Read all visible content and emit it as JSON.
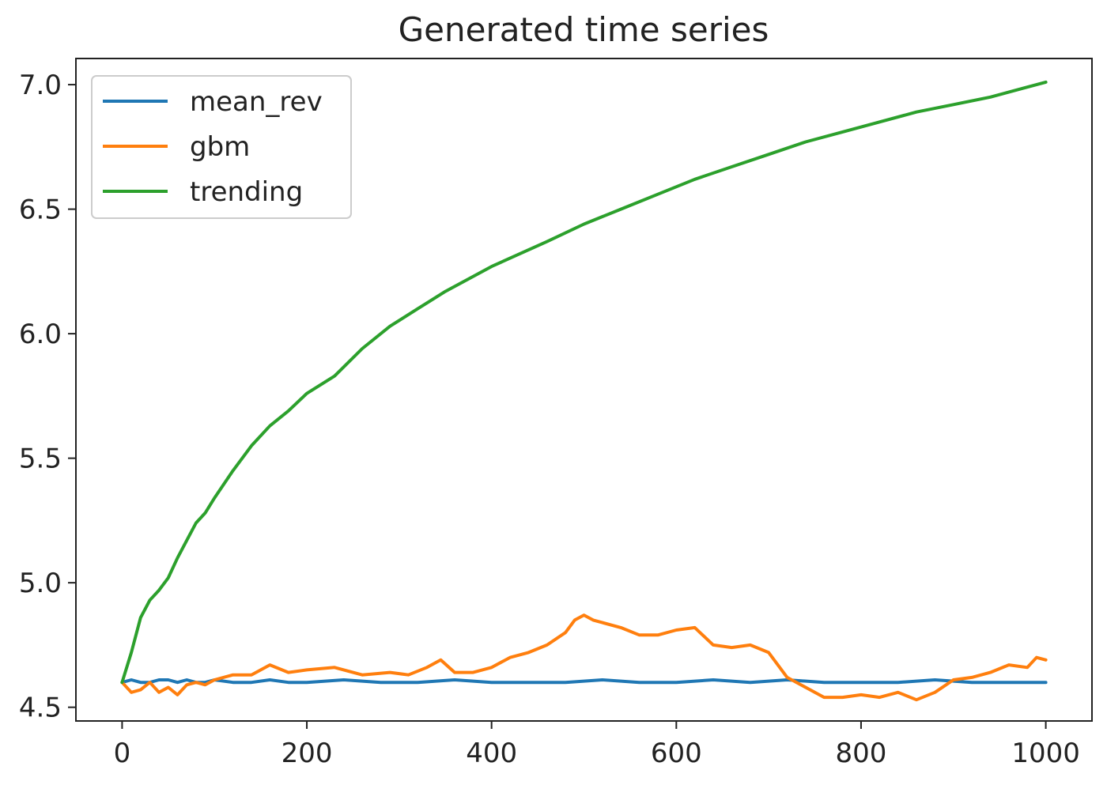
{
  "chart_data": {
    "type": "line",
    "title": "Generated time series",
    "xlabel": "",
    "ylabel": "",
    "xlim": [
      -50,
      1050
    ],
    "ylim": [
      4.445,
      7.105
    ],
    "x_ticks": [
      0,
      200,
      400,
      600,
      800,
      1000
    ],
    "x_tick_labels": [
      "0",
      "200",
      "400",
      "600",
      "800",
      "1000"
    ],
    "y_ticks": [
      4.5,
      5.0,
      5.5,
      6.0,
      6.5,
      7.0
    ],
    "y_tick_labels": [
      "4.5",
      "5.0",
      "5.5",
      "6.0",
      "6.5",
      "7.0"
    ],
    "grid": false,
    "legend_position": "top-left",
    "series": [
      {
        "name": "mean_rev",
        "color": "#1f77b4",
        "x": [
          0,
          10,
          20,
          30,
          40,
          50,
          60,
          70,
          80,
          90,
          100,
          120,
          140,
          160,
          180,
          200,
          240,
          280,
          320,
          360,
          400,
          440,
          480,
          520,
          560,
          600,
          640,
          680,
          720,
          760,
          800,
          840,
          880,
          920,
          960,
          1000
        ],
        "y": [
          4.6,
          4.61,
          4.6,
          4.6,
          4.61,
          4.61,
          4.6,
          4.61,
          4.6,
          4.6,
          4.61,
          4.6,
          4.6,
          4.61,
          4.6,
          4.6,
          4.61,
          4.6,
          4.6,
          4.61,
          4.6,
          4.6,
          4.6,
          4.61,
          4.6,
          4.6,
          4.61,
          4.6,
          4.61,
          4.6,
          4.6,
          4.6,
          4.61,
          4.6,
          4.6,
          4.6
        ]
      },
      {
        "name": "gbm",
        "color": "#ff7f0e",
        "x": [
          0,
          10,
          20,
          30,
          40,
          50,
          60,
          70,
          80,
          90,
          100,
          120,
          140,
          160,
          180,
          200,
          230,
          260,
          290,
          310,
          330,
          345,
          360,
          380,
          400,
          420,
          440,
          460,
          480,
          490,
          500,
          510,
          520,
          540,
          560,
          580,
          600,
          620,
          640,
          660,
          680,
          700,
          720,
          740,
          760,
          780,
          800,
          820,
          840,
          860,
          880,
          900,
          920,
          940,
          960,
          980,
          990,
          1000
        ],
        "y": [
          4.6,
          4.56,
          4.57,
          4.6,
          4.56,
          4.58,
          4.55,
          4.59,
          4.6,
          4.59,
          4.61,
          4.63,
          4.63,
          4.67,
          4.64,
          4.65,
          4.66,
          4.63,
          4.64,
          4.63,
          4.66,
          4.69,
          4.64,
          4.64,
          4.66,
          4.7,
          4.72,
          4.75,
          4.8,
          4.85,
          4.87,
          4.85,
          4.84,
          4.82,
          4.79,
          4.79,
          4.81,
          4.82,
          4.75,
          4.74,
          4.75,
          4.72,
          4.62,
          4.58,
          4.54,
          4.54,
          4.55,
          4.54,
          4.56,
          4.53,
          4.56,
          4.61,
          4.62,
          4.64,
          4.67,
          4.66,
          4.7,
          4.69
        ]
      },
      {
        "name": "trending",
        "color": "#2ca02c",
        "x": [
          0,
          10,
          20,
          30,
          40,
          50,
          60,
          70,
          80,
          90,
          100,
          120,
          140,
          160,
          180,
          200,
          230,
          260,
          290,
          320,
          350,
          380,
          400,
          430,
          460,
          500,
          540,
          580,
          620,
          660,
          700,
          740,
          780,
          820,
          860,
          900,
          940,
          980,
          1000
        ],
        "y": [
          4.6,
          4.72,
          4.86,
          4.93,
          4.97,
          5.02,
          5.1,
          5.17,
          5.24,
          5.28,
          5.34,
          5.45,
          5.55,
          5.63,
          5.69,
          5.76,
          5.83,
          5.94,
          6.03,
          6.1,
          6.17,
          6.23,
          6.27,
          6.32,
          6.37,
          6.44,
          6.5,
          6.56,
          6.62,
          6.67,
          6.72,
          6.77,
          6.81,
          6.85,
          6.89,
          6.92,
          6.95,
          6.99,
          7.01
        ]
      }
    ]
  }
}
